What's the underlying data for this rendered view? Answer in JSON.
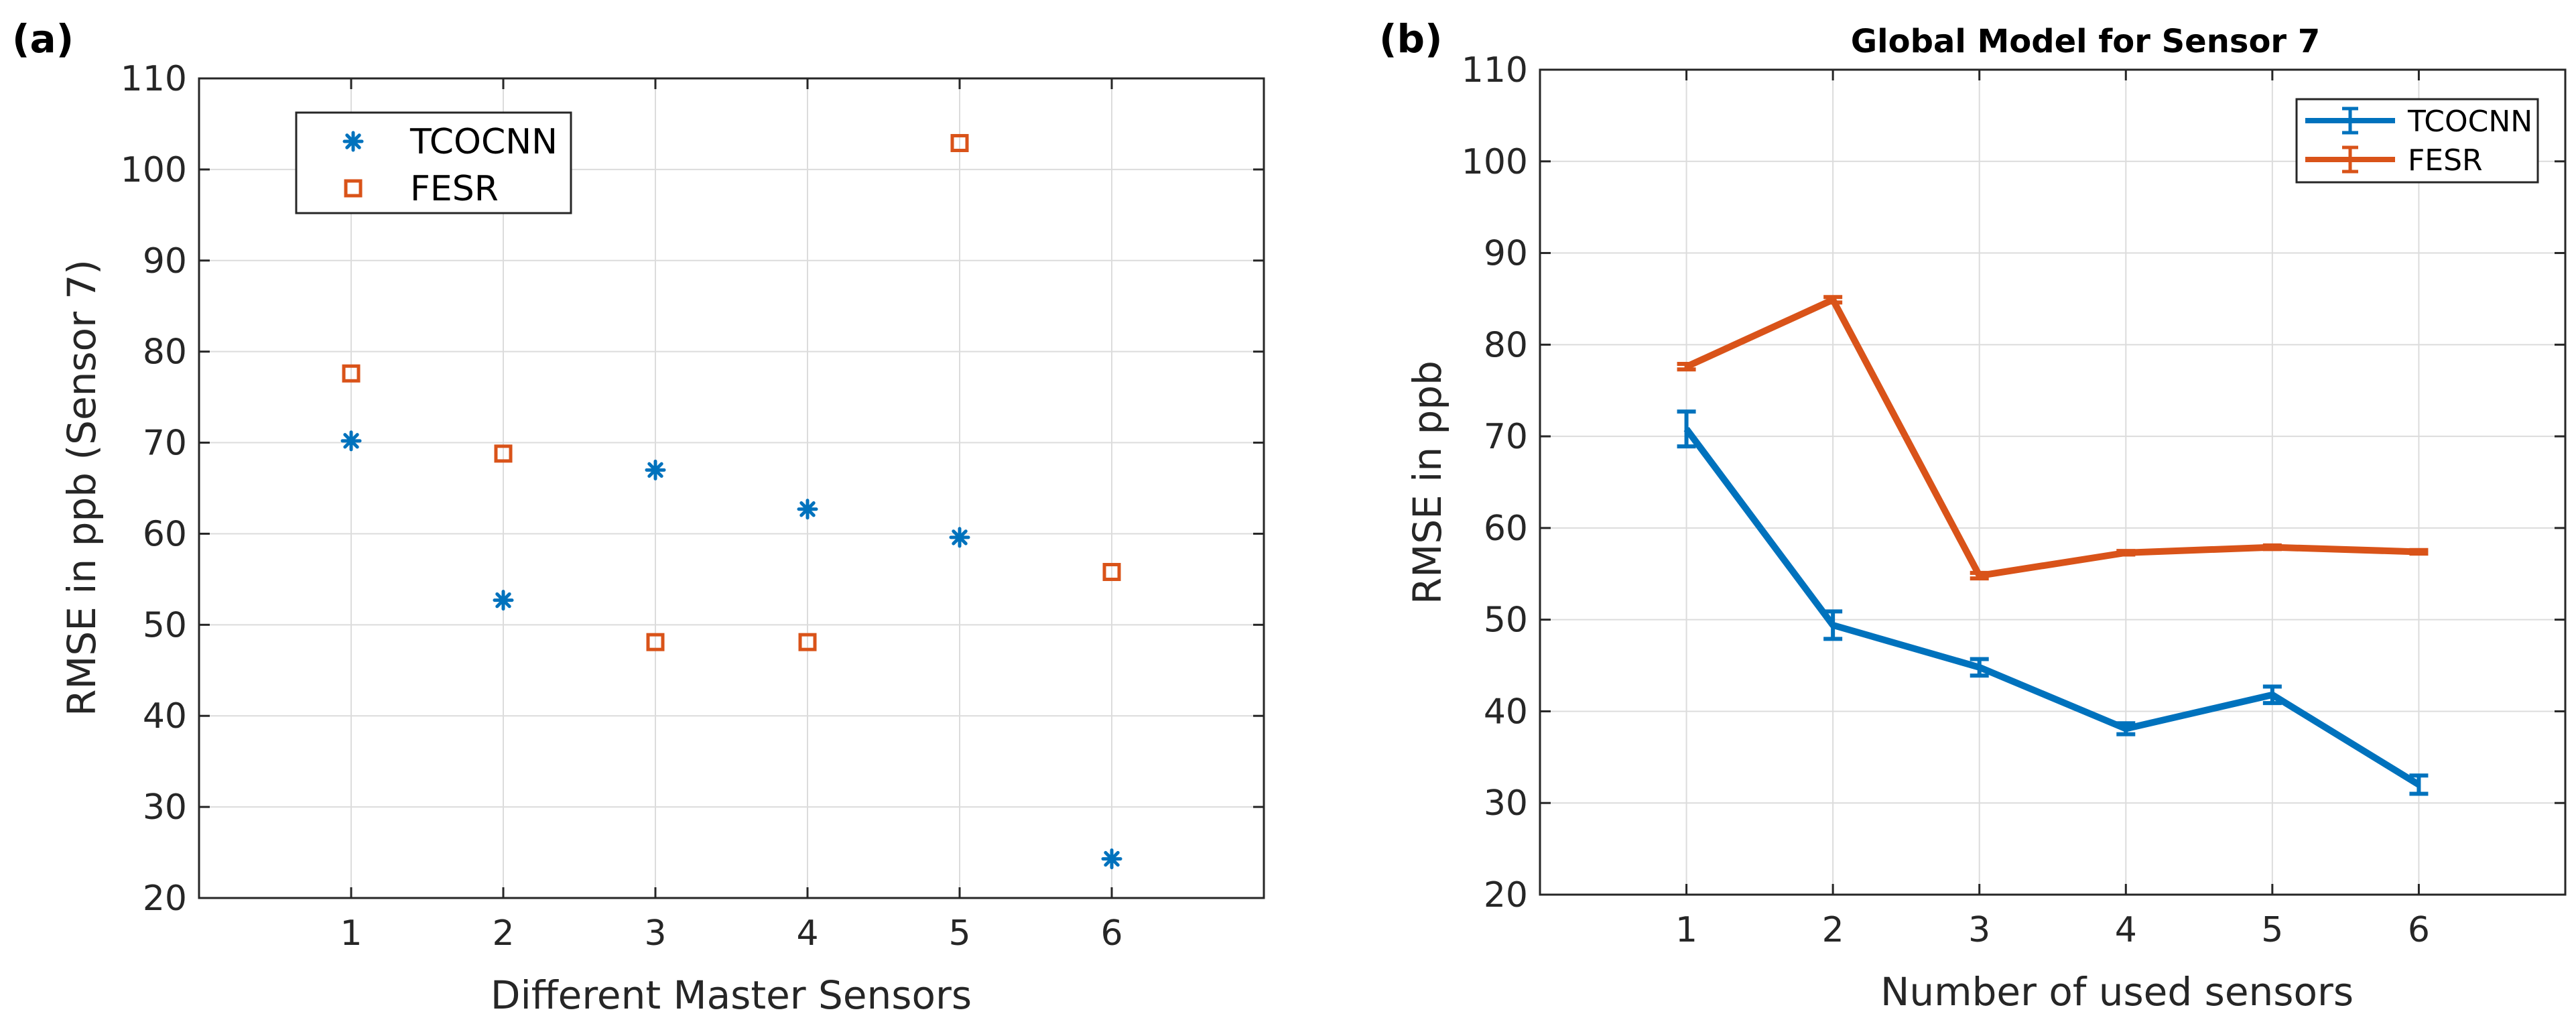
{
  "chart_data": [
    {
      "panel_label": "(a)",
      "type": "scatter",
      "title": "",
      "xlabel": "Different Master Sensors",
      "ylabel": "RMSE in ppb (Sensor 7)",
      "xlim": [
        0,
        7
      ],
      "ylim": [
        20,
        110
      ],
      "xticks": [
        1,
        2,
        3,
        4,
        5,
        6
      ],
      "yticks": [
        20,
        30,
        40,
        50,
        60,
        70,
        80,
        90,
        100,
        110
      ],
      "grid": true,
      "legend_position": "top-left",
      "series": [
        {
          "name": "TCOCNN",
          "marker": "asterisk",
          "color": "#0072BD",
          "x": [
            1,
            2,
            3,
            4,
            5,
            6
          ],
          "y": [
            70.2,
            52.7,
            67.0,
            62.7,
            59.6,
            24.3
          ]
        },
        {
          "name": "FESR",
          "marker": "square",
          "color": "#D95319",
          "x": [
            1,
            2,
            3,
            4,
            5,
            6
          ],
          "y": [
            77.6,
            68.8,
            48.1,
            48.1,
            102.9,
            55.8
          ]
        }
      ]
    },
    {
      "panel_label": "(b)",
      "type": "line",
      "title": "Global Model for Sensor 7",
      "xlabel": "Number of used sensors",
      "ylabel": "RMSE in ppb",
      "xlim": [
        0,
        7
      ],
      "ylim": [
        20,
        110
      ],
      "xticks": [
        1,
        2,
        3,
        4,
        5,
        6
      ],
      "yticks": [
        20,
        30,
        40,
        50,
        60,
        70,
        80,
        90,
        100,
        110
      ],
      "grid": true,
      "legend_position": "top-right",
      "series": [
        {
          "name": "TCOCNN",
          "color": "#0072BD",
          "x": [
            1,
            2,
            3,
            4,
            5,
            6
          ],
          "y": [
            70.8,
            49.4,
            44.8,
            38.1,
            41.8,
            32.0
          ],
          "err": [
            1.9,
            1.5,
            0.9,
            0.6,
            0.9,
            1.0
          ]
        },
        {
          "name": "FESR",
          "color": "#D95319",
          "x": [
            1,
            2,
            3,
            4,
            5,
            6
          ],
          "y": [
            77.6,
            84.9,
            54.8,
            57.3,
            57.9,
            57.4
          ],
          "err": [
            0.3,
            0.3,
            0.3,
            0.2,
            0.2,
            0.2
          ]
        }
      ]
    }
  ]
}
